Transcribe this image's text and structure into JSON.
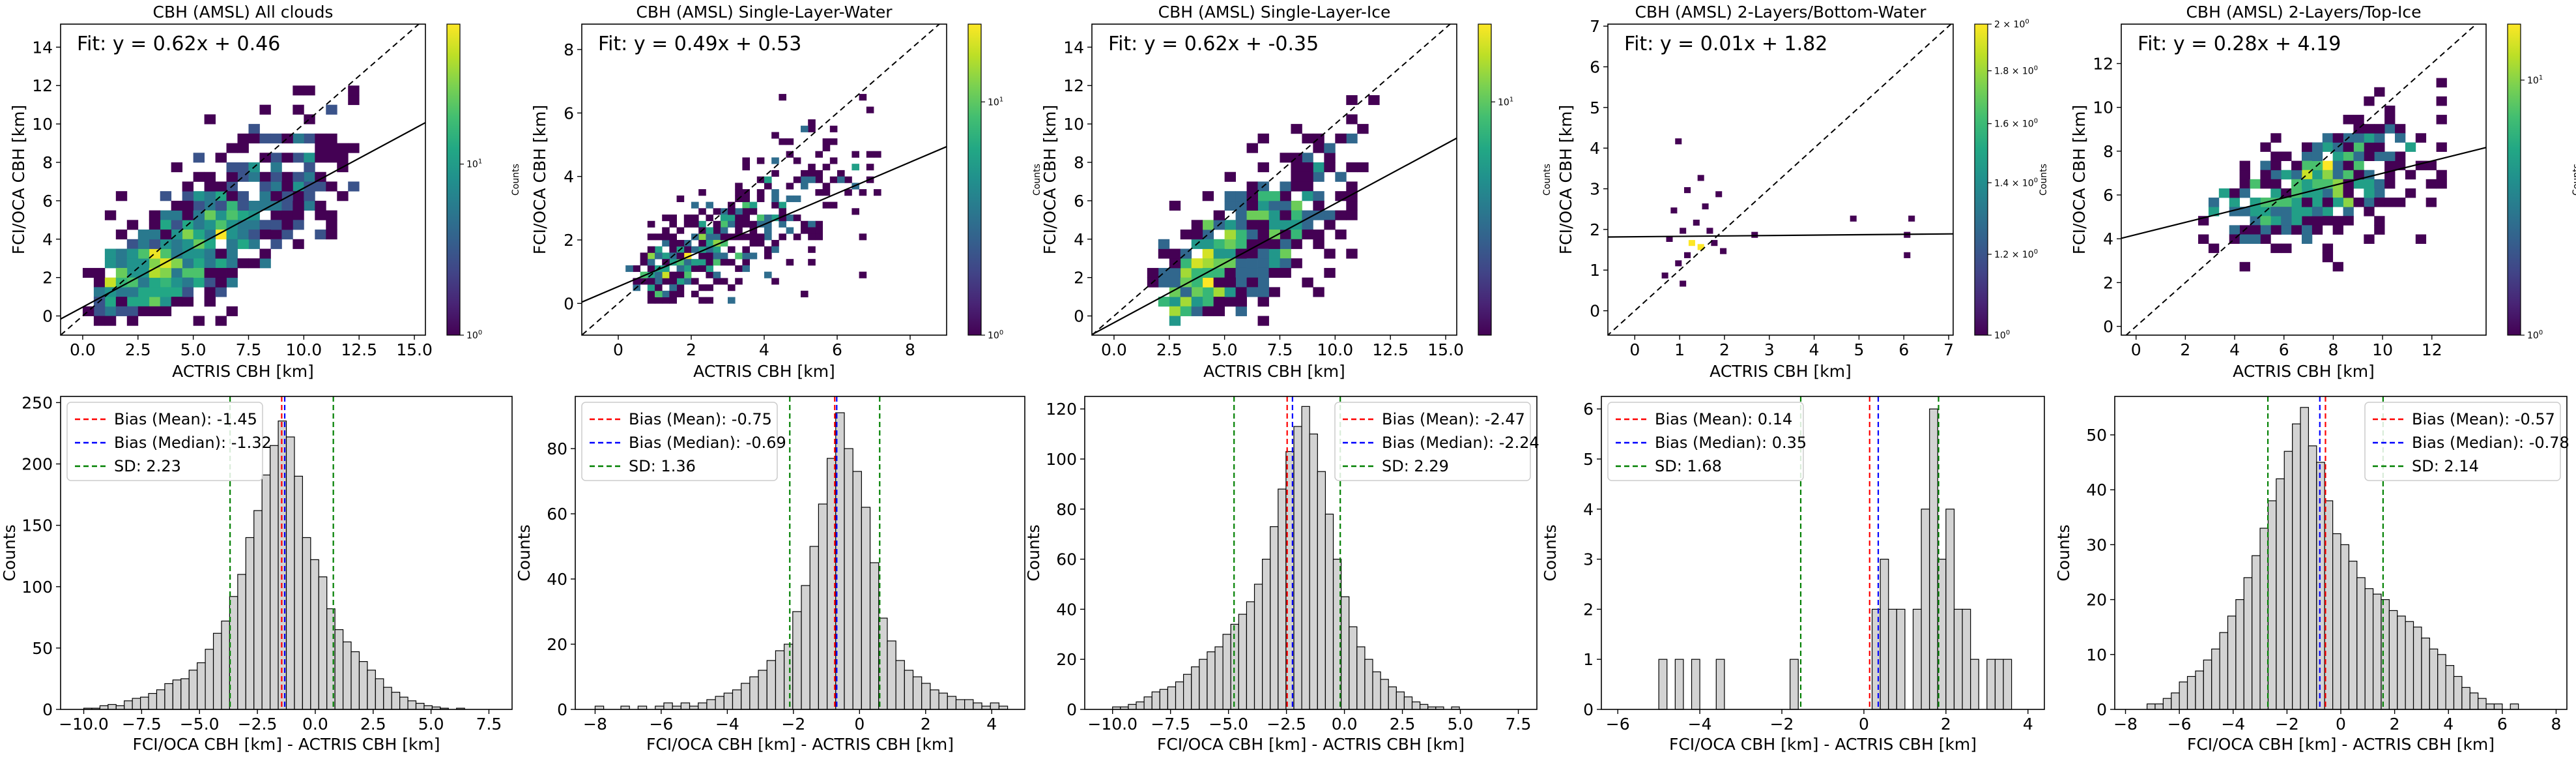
{
  "chart_data": [
    {
      "type": "heatmap",
      "title": "CBH (AMSL) All clouds",
      "xlabel": "ACTRIS CBH [km]",
      "ylabel": "FCI/OCA CBH [km]",
      "xlim": [
        -1,
        15.5
      ],
      "ylim": [
        -1,
        15.2
      ],
      "xticks": [
        "0.0",
        "2.5",
        "5.0",
        "7.5",
        "10.0",
        "12.5",
        "15.0"
      ],
      "xtick_values": [
        0,
        2.5,
        5,
        7.5,
        10,
        12.5,
        15
      ],
      "yticks": [
        "0",
        "2",
        "4",
        "6",
        "8",
        "10",
        "12",
        "14"
      ],
      "ytick_values": [
        0,
        2,
        4,
        6,
        8,
        10,
        12,
        14
      ],
      "fit_text": "Fit: y = 0.62x + 0.46",
      "fit": {
        "slope": 0.62,
        "intercept": 0.46
      },
      "colorbar": {
        "label": "Counts",
        "ticks": [
          "10^0",
          "10^1"
        ],
        "tick_fractions": [
          0,
          0.55
        ]
      },
      "cloud": {
        "seed": 11,
        "n": 720,
        "xmin": 0.05,
        "xmax": 12.5,
        "xmode": 3.0,
        "sd_base": 1.2,
        "sd_slope": 0.13,
        "ymin": -0.2,
        "ymax": 14.3,
        "bin": 0.5
      }
    },
    {
      "type": "heatmap",
      "title": "CBH (AMSL) Single-Layer-Water",
      "xlabel": "ACTRIS CBH [km]",
      "ylabel": "FCI/OCA CBH [km]",
      "xlim": [
        -1,
        9
      ],
      "ylim": [
        -1,
        8.8
      ],
      "xticks": [
        "0",
        "2",
        "4",
        "6",
        "8"
      ],
      "xtick_values": [
        0,
        2,
        4,
        6,
        8
      ],
      "yticks": [
        "0",
        "2",
        "4",
        "6",
        "8"
      ],
      "ytick_values": [
        0,
        2,
        4,
        6,
        8
      ],
      "fit_text": "Fit: y = 0.49x + 0.53",
      "fit": {
        "slope": 0.49,
        "intercept": 0.53
      },
      "colorbar": {
        "label": "Counts",
        "ticks": [
          "10^0",
          "10^1"
        ],
        "tick_fractions": [
          0,
          0.75
        ]
      },
      "cloud": {
        "seed": 23,
        "n": 430,
        "xmin": 0.2,
        "xmax": 7.6,
        "xmode": 1.2,
        "sd_base": 0.6,
        "sd_slope": 0.12,
        "ymin": 0.0,
        "ymax": 7.2,
        "bin": 0.2
      }
    },
    {
      "type": "heatmap",
      "title": "CBH (AMSL) Single-Layer-Ice",
      "xlabel": "ACTRIS CBH [km]",
      "ylabel": "FCI/OCA CBH [km]",
      "xlim": [
        -1,
        15.5
      ],
      "ylim": [
        -1,
        15.2
      ],
      "xticks": [
        "0.0",
        "2.5",
        "5.0",
        "7.5",
        "10.0",
        "12.5",
        "15.0"
      ],
      "xtick_values": [
        0,
        2.5,
        5,
        7.5,
        10,
        12.5,
        15
      ],
      "yticks": [
        "0",
        "2",
        "4",
        "6",
        "8",
        "10",
        "12",
        "14"
      ],
      "ytick_values": [
        0,
        2,
        4,
        6,
        8,
        10,
        12,
        14
      ],
      "fit_text": "Fit: y = 0.62x + -0.35",
      "fit": {
        "slope": 0.62,
        "intercept": -0.35
      },
      "colorbar": {
        "label": "Counts",
        "ticks": [
          "10^1"
        ],
        "tick_fractions": [
          0.75
        ]
      },
      "cloud": {
        "seed": 37,
        "n": 420,
        "xmin": 1.5,
        "xmax": 12.0,
        "xmode": 4.0,
        "sd_base": 1.3,
        "sd_slope": 0.1,
        "ymin": -0.2,
        "ymax": 12.5,
        "bin": 0.5
      }
    },
    {
      "type": "heatmap",
      "title": "CBH (AMSL) 2-Layers/Bottom-Water",
      "xlabel": "ACTRIS CBH [km]",
      "ylabel": "FCI/OCA CBH [km]",
      "xlim": [
        -0.6,
        7.1
      ],
      "ylim": [
        -0.6,
        7.05
      ],
      "xticks": [
        "0",
        "1",
        "2",
        "3",
        "4",
        "5",
        "6",
        "7"
      ],
      "xtick_values": [
        0,
        1,
        2,
        3,
        4,
        5,
        6,
        7
      ],
      "yticks": [
        "0",
        "1",
        "2",
        "3",
        "4",
        "5",
        "6",
        "7"
      ],
      "ytick_values": [
        0,
        1,
        2,
        3,
        4,
        5,
        6,
        7
      ],
      "fit_text": "Fit: y = 0.01x + 1.82",
      "fit": {
        "slope": 0.01,
        "intercept": 1.82
      },
      "colorbar": {
        "label": "Counts",
        "ticks": [
          "2 × 10^0",
          "1.8 × 10^0",
          "1.6 × 10^0",
          "1.4 × 10^0",
          "1.2 × 10^0",
          "10^0"
        ],
        "tick_fractions": [
          1.0,
          0.85,
          0.68,
          0.49,
          0.26,
          0.0
        ]
      },
      "cells": [
        [
          0.9,
          4.1,
          1
        ],
        [
          1.4,
          3.2,
          1
        ],
        [
          1.1,
          2.9,
          1
        ],
        [
          1.8,
          2.8,
          1
        ],
        [
          0.8,
          2.4,
          1
        ],
        [
          1.5,
          2.5,
          1
        ],
        [
          1.3,
          2.1,
          1
        ],
        [
          1.0,
          1.9,
          1
        ],
        [
          1.6,
          1.9,
          1
        ],
        [
          1.2,
          1.6,
          2
        ],
        [
          1.4,
          1.5,
          2
        ],
        [
          1.7,
          1.6,
          1
        ],
        [
          0.7,
          1.7,
          1
        ],
        [
          1.9,
          1.4,
          1
        ],
        [
          1.1,
          1.3,
          1
        ],
        [
          0.9,
          1.1,
          1
        ],
        [
          0.6,
          0.8,
          1
        ],
        [
          1.0,
          0.6,
          1
        ],
        [
          4.8,
          2.2,
          1
        ],
        [
          6.1,
          2.2,
          1
        ],
        [
          6.0,
          1.8,
          1
        ],
        [
          6.0,
          1.3,
          1
        ],
        [
          2.6,
          1.8,
          1
        ]
      ],
      "bin": 0.14
    },
    {
      "type": "heatmap",
      "title": "CBH (AMSL) 2-Layers/Top-Ice",
      "xlabel": "ACTRIS CBH [km]",
      "ylabel": "FCI/OCA CBH [km]",
      "xlim": [
        -0.6,
        14.2
      ],
      "ylim": [
        -0.4,
        13.8
      ],
      "xticks": [
        "0",
        "2",
        "4",
        "6",
        "8",
        "10",
        "12"
      ],
      "xtick_values": [
        0,
        2,
        4,
        6,
        8,
        10,
        12
      ],
      "yticks": [
        "0",
        "2",
        "4",
        "6",
        "8",
        "10",
        "12"
      ],
      "ytick_values": [
        0,
        2,
        4,
        6,
        8,
        10,
        12
      ],
      "fit_text": "Fit: y = 0.28x + 4.19",
      "fit": {
        "slope": 0.28,
        "intercept": 4.19
      },
      "colorbar": {
        "label": "Counts",
        "ticks": [
          "10^0",
          "10^1"
        ],
        "tick_fractions": [
          0,
          0.82
        ]
      },
      "cloud": {
        "seed": 53,
        "n": 340,
        "xmin": 2.2,
        "xmax": 12.8,
        "xmode": 7.2,
        "sd_base": 1.1,
        "sd_slope": 0.05,
        "ymin": 1.2,
        "ymax": 11.3,
        "bin": 0.42
      }
    },
    {
      "type": "bar",
      "xlabel": "FCI/OCA CBH [km] - ACTRIS CBH [km]",
      "ylabel": "Counts",
      "xlim": [
        -11.0,
        8.5
      ],
      "ylim": [
        0,
        255
      ],
      "xticks": [
        "−10.0",
        "−7.5",
        "−5.0",
        "−2.5",
        "0.0",
        "2.5",
        "5.0",
        "7.5"
      ],
      "xtick_values": [
        -10,
        -7.5,
        -5,
        -2.5,
        0,
        2.5,
        5,
        7.5
      ],
      "yticks": [
        "0",
        "50",
        "100",
        "150",
        "200",
        "250"
      ],
      "ytick_values": [
        0,
        50,
        100,
        150,
        200,
        250
      ],
      "bin_start": -10.0,
      "bin_width": 0.35,
      "values": [
        1,
        1,
        3,
        4,
        3,
        7,
        9,
        10,
        13,
        16,
        21,
        24,
        25,
        32,
        38,
        49,
        62,
        72,
        92,
        110,
        140,
        162,
        191,
        215,
        235,
        222,
        190,
        140,
        122,
        108,
        82,
        65,
        55,
        47,
        39,
        32,
        25,
        18,
        14,
        10,
        7,
        5,
        3,
        2,
        1,
        0,
        1
      ],
      "mean": -1.45,
      "median": -1.32,
      "sd": 2.23,
      "legend": [
        "Bias (Mean): -1.45",
        "Bias (Median): -1.32",
        "SD: 2.23"
      ],
      "legend_loc": "upper-left"
    },
    {
      "type": "bar",
      "xlabel": "FCI/OCA CBH [km] - ACTRIS CBH [km]",
      "ylabel": "Counts",
      "xlim": [
        -8.6,
        5.0
      ],
      "ylim": [
        0,
        96
      ],
      "xticks": [
        "−8",
        "−6",
        "−4",
        "−2",
        "0",
        "2",
        "4"
      ],
      "xtick_values": [
        -8,
        -6,
        -4,
        -2,
        0,
        2,
        4
      ],
      "yticks": [
        "0",
        "20",
        "40",
        "60",
        "80"
      ],
      "ytick_values": [
        0,
        20,
        40,
        60,
        80
      ],
      "bin_start": -8.0,
      "bin_width": 0.26,
      "values": [
        1,
        0,
        0,
        1,
        0,
        1,
        0,
        1,
        2,
        1,
        2,
        1,
        2,
        3,
        4,
        5,
        6,
        8,
        10,
        12,
        15,
        18,
        20,
        30,
        38,
        50,
        63,
        77,
        91,
        80,
        73,
        62,
        45,
        28,
        21,
        15,
        12,
        10,
        8,
        6,
        5,
        4,
        3,
        3,
        2,
        1,
        2,
        1
      ],
      "mean": -0.75,
      "median": -0.69,
      "sd": 1.36,
      "legend": [
        "Bias (Mean): -0.75",
        "Bias (Median): -0.69",
        "SD: 1.36"
      ],
      "legend_loc": "upper-left"
    },
    {
      "type": "bar",
      "xlabel": "FCI/OCA CBH [km] - ACTRIS CBH [km]",
      "ylabel": "Counts",
      "xlim": [
        -11.2,
        8.3
      ],
      "ylim": [
        0,
        125
      ],
      "xticks": [
        "−10.0",
        "−7.5",
        "−5.0",
        "−2.5",
        "0.0",
        "2.5",
        "5.0",
        "7.5"
      ],
      "xtick_values": [
        -10,
        -7.5,
        -5,
        -2.5,
        0,
        2.5,
        5,
        7.5
      ],
      "yticks": [
        "0",
        "20",
        "40",
        "60",
        "80",
        "100",
        "120"
      ],
      "ytick_values": [
        0,
        20,
        40,
        60,
        80,
        100,
        120
      ],
      "bin_start": -10.0,
      "bin_width": 0.34,
      "values": [
        1,
        1,
        2,
        3,
        5,
        7,
        8,
        9,
        11,
        14,
        17,
        20,
        23,
        25,
        30,
        34,
        38,
        43,
        50,
        60,
        73,
        88,
        103,
        113,
        121,
        110,
        95,
        78,
        60,
        45,
        33,
        25,
        20,
        15,
        12,
        9,
        7,
        5,
        3,
        2,
        1,
        1,
        0,
        1
      ],
      "mean": -2.47,
      "median": -2.24,
      "sd": 2.29,
      "legend": [
        "Bias (Mean): -2.47",
        "Bias (Median): -2.24",
        "SD: 2.29"
      ],
      "legend_loc": "upper-right"
    },
    {
      "type": "bar",
      "xlabel": "FCI/OCA CBH [km] - ACTRIS CBH [km]",
      "ylabel": "Counts",
      "xlim": [
        -6.4,
        4.4
      ],
      "ylim": [
        0,
        6.25
      ],
      "xticks": [
        "−6",
        "−4",
        "−2",
        "0",
        "2",
        "4"
      ],
      "xtick_values": [
        -6,
        -4,
        -2,
        0,
        2,
        4
      ],
      "yticks": [
        "0",
        "1",
        "2",
        "3",
        "4",
        "5",
        "6"
      ],
      "ytick_values": [
        0,
        1,
        2,
        3,
        4,
        5,
        6
      ],
      "bin_start": -5.0,
      "bin_width": 0.2,
      "values": [
        1,
        0,
        1,
        0,
        1,
        0,
        0,
        1,
        0,
        0,
        0,
        0,
        0,
        0,
        0,
        0,
        1,
        0,
        0,
        0,
        0,
        0,
        0,
        0,
        0,
        0,
        2,
        3,
        2,
        2,
        0,
        2,
        4,
        6,
        3,
        4,
        2,
        2,
        1,
        0,
        1,
        1,
        1,
        0,
        0,
        0,
        0,
        0,
        0,
        0,
        0
      ],
      "mean": 0.14,
      "median": 0.35,
      "sd": 1.68,
      "legend": [
        "Bias (Mean): 0.14",
        "Bias (Median): 0.35",
        "SD: 1.68"
      ],
      "legend_loc": "upper-left"
    },
    {
      "type": "bar",
      "xlabel": "FCI/OCA CBH [km] - ACTRIS CBH [km]",
      "ylabel": "Counts",
      "xlim": [
        -8.4,
        8.4
      ],
      "ylim": [
        0,
        57
      ],
      "xticks": [
        "−8",
        "−6",
        "−4",
        "−2",
        "0",
        "2",
        "4",
        "6",
        "8"
      ],
      "xtick_values": [
        -8,
        -6,
        -4,
        -2,
        0,
        2,
        4,
        6,
        8
      ],
      "yticks": [
        "0",
        "10",
        "20",
        "30",
        "40",
        "50"
      ],
      "ytick_values": [
        0,
        10,
        20,
        30,
        40,
        50
      ],
      "bin_start": -7.2,
      "bin_width": 0.3,
      "values": [
        1,
        1,
        2,
        3,
        5,
        6,
        7,
        9,
        11,
        14,
        17,
        20,
        24,
        28,
        33,
        38,
        42,
        47,
        52,
        55,
        48,
        45,
        38,
        32,
        30,
        27,
        24,
        22,
        21,
        20,
        18,
        17,
        16,
        15,
        13,
        11,
        10,
        8,
        6,
        4,
        3,
        2,
        1,
        1,
        0,
        1
      ],
      "mean": -0.57,
      "median": -0.78,
      "sd": 2.14,
      "legend": [
        "Bias (Mean): -0.57",
        "Bias (Median): -0.78",
        "SD: 2.14"
      ],
      "legend_loc": "upper-right"
    }
  ],
  "colors": {
    "mean_line": "#ff0000",
    "median_line": "#0000ff",
    "sd_line": "#008000",
    "bar_fill": "#d3d3d3",
    "bar_edge": "#000000",
    "fit_line": "#000000",
    "one_to_one": "#000000",
    "colormap": [
      "#440154",
      "#482475",
      "#414487",
      "#355f8d",
      "#2a788e",
      "#21908d",
      "#22a884",
      "#42be71",
      "#7ad151",
      "#bddf26",
      "#fde725"
    ]
  }
}
